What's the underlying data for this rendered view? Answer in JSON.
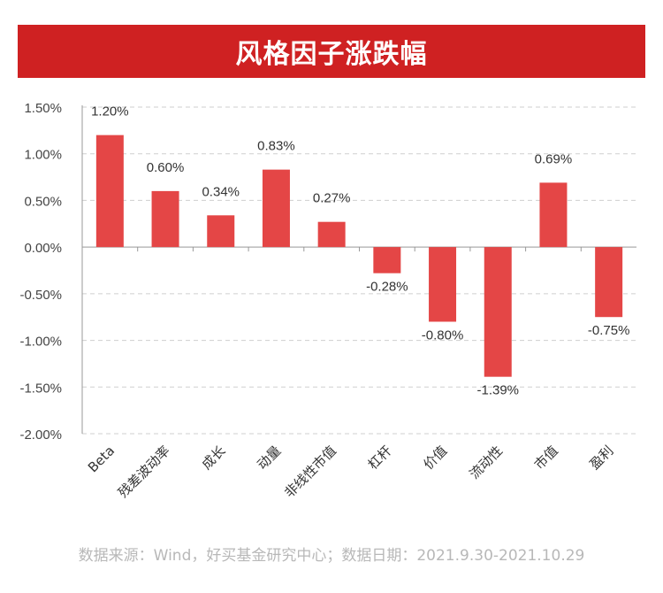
{
  "chart_data": {
    "type": "bar",
    "title": "风格因子涨跌幅",
    "categories": [
      "Beta",
      "残差波动率",
      "成长",
      "动量",
      "非线性市值",
      "杠杆",
      "价值",
      "流动性",
      "市值",
      "盈利"
    ],
    "values": [
      1.2,
      0.6,
      0.34,
      0.83,
      0.27,
      -0.28,
      -0.8,
      -1.39,
      0.69,
      -0.75
    ],
    "data_labels": [
      "1.20%",
      "0.60%",
      "0.34%",
      "0.83%",
      "0.27%",
      "-0.28%",
      "-0.80%",
      "-1.39%",
      "0.69%",
      "-0.75%"
    ],
    "yticks": [
      1.5,
      1.0,
      0.5,
      0.0,
      -0.5,
      -1.0,
      -1.5,
      -2.0
    ],
    "ytick_labels": [
      "1.50%",
      "1.00%",
      "0.50%",
      "0.00%",
      "-0.50%",
      "-1.00%",
      "-1.50%",
      "-2.00%"
    ],
    "ylim": [
      -2.0,
      1.5
    ],
    "xlabel": "",
    "ylabel": "",
    "grid": true,
    "legend": "none",
    "bar_color": "#e44646"
  },
  "footer": {
    "source": "数据来源：Wind，好买基金研究中心；数据日期：2021.9.30-2021.10.29"
  }
}
